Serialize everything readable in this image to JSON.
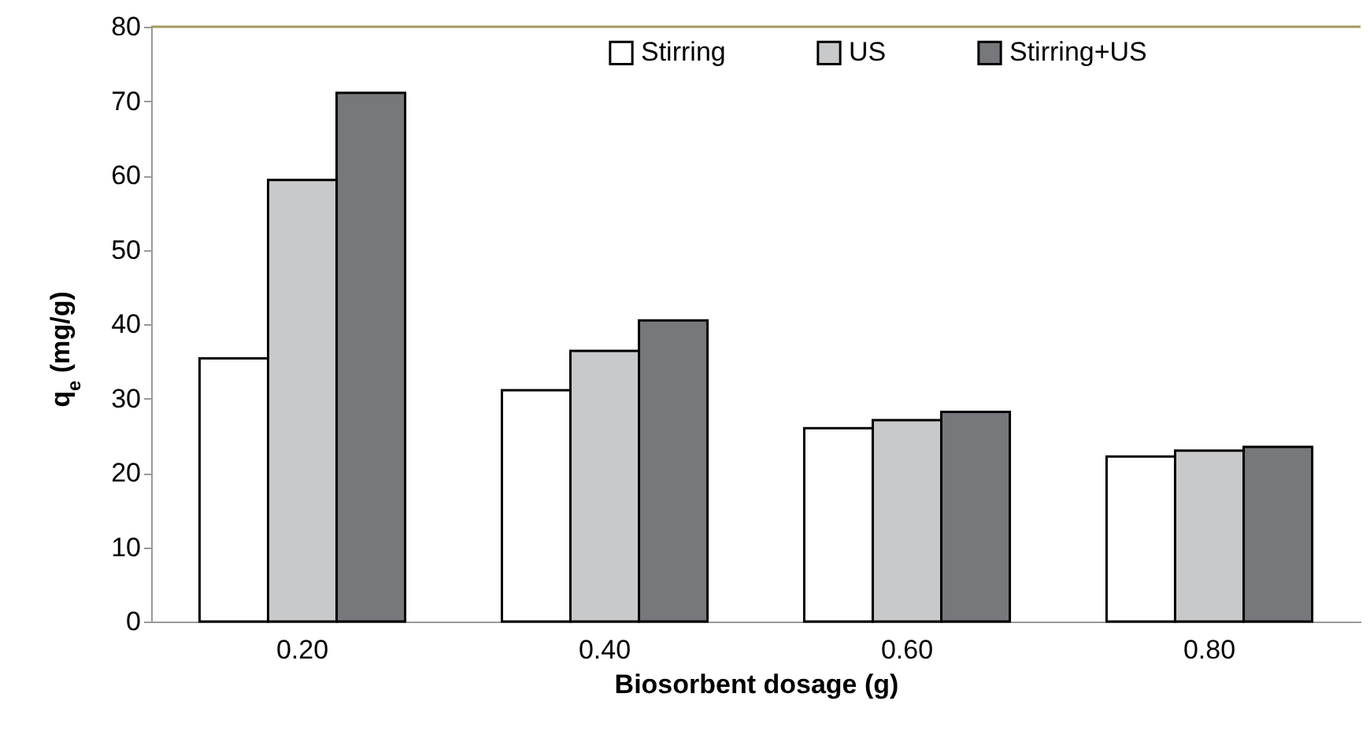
{
  "chart_data": {
    "type": "bar",
    "xlabel": "Biosorbent dosage (g)",
    "ylabel": "q$_{e}$ (mg/g)",
    "categories": [
      "0.20",
      "0.40",
      "0.60",
      "0.80"
    ],
    "series": [
      {
        "name": "Stirring",
        "color": "#ffffff",
        "values": [
          35.4,
          31.1,
          26.0,
          22.2
        ]
      },
      {
        "name": "US",
        "color": "#c8c9cb",
        "values": [
          59.4,
          36.4,
          27.1,
          23.0
        ]
      },
      {
        "name": "Stirring+US",
        "color": "#77787c",
        "values": [
          71.1,
          40.5,
          28.2,
          23.5
        ]
      }
    ],
    "ylim": [
      0,
      80
    ],
    "yticks": [
      0,
      10,
      20,
      30,
      40,
      50,
      60,
      70,
      80
    ],
    "grid": false,
    "legend": "top"
  }
}
